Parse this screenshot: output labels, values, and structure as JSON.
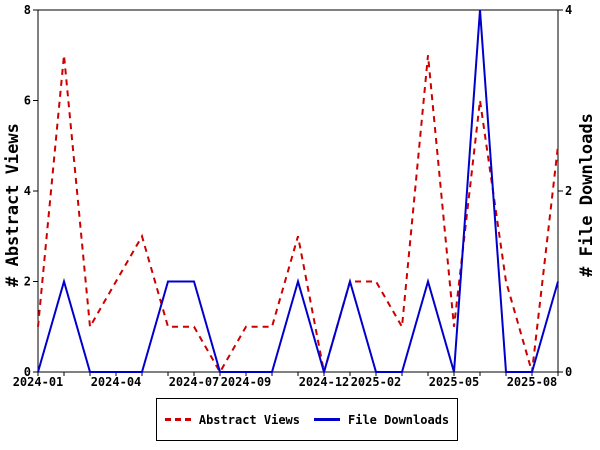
{
  "chart_data": {
    "type": "line",
    "title": "",
    "x": [
      "2024-01",
      "2024-02",
      "2024-03",
      "2024-04",
      "2024-05",
      "2024-06",
      "2024-07",
      "2024-08",
      "2024-09",
      "2024-10",
      "2024-11",
      "2024-12",
      "2025-01",
      "2025-02",
      "2025-03",
      "2025-04",
      "2025-05",
      "2025-06",
      "2025-07",
      "2025-08",
      "2025-09"
    ],
    "x_tick_labels": [
      "2024-01",
      "2024-04",
      "2024-07",
      "2024-09",
      "2024-12",
      "2025-02",
      "2025-05",
      "2025-08"
    ],
    "x_label_indices": [
      0,
      3,
      6,
      8,
      11,
      13,
      16,
      19
    ],
    "series": [
      {
        "name": "Abstract Views",
        "axis": "left",
        "style": "dashed",
        "color": "#CC0000",
        "values": [
          1,
          7,
          1,
          2,
          3,
          1,
          1,
          0,
          1,
          1,
          3,
          0,
          2,
          2,
          1,
          7,
          1,
          6,
          2,
          0,
          5
        ]
      },
      {
        "name": "File Downloads",
        "axis": "right",
        "style": "solid",
        "color": "#0000CC",
        "values": [
          0,
          1,
          0,
          0,
          0,
          1,
          1,
          0,
          0,
          0,
          1,
          0,
          1,
          0,
          0,
          1,
          0,
          4,
          0,
          0,
          1
        ]
      }
    ],
    "left_axis": {
      "label": "# Abstract Views",
      "range": [
        0,
        8
      ],
      "ticks": [
        0,
        2,
        4,
        6,
        8
      ]
    },
    "right_axis": {
      "label": "# File Downloads",
      "range": [
        0,
        4
      ],
      "ticks": [
        0,
        2,
        4
      ]
    },
    "grid": false,
    "legend_position": "bottom-center",
    "legend": {
      "items": [
        {
          "label": "Abstract Views",
          "color": "#CC0000",
          "style": "dashed"
        },
        {
          "label": "File Downloads",
          "color": "#0000CC",
          "style": "solid"
        }
      ]
    },
    "frame_color": "#000000",
    "background_color": "#FFFFFF"
  }
}
